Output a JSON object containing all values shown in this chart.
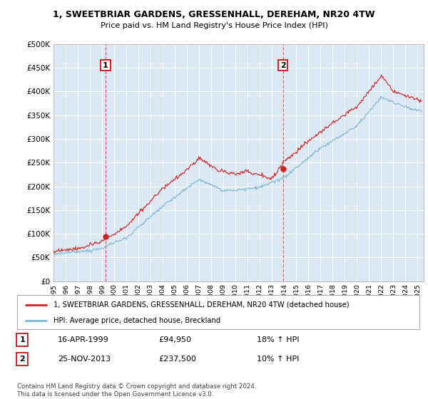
{
  "title1": "1, SWEETBRIAR GARDENS, GRESSENHALL, DEREHAM, NR20 4TW",
  "title2": "Price paid vs. HM Land Registry's House Price Index (HPI)",
  "plot_bg_color": "#dce9f5",
  "red_line_label": "1, SWEETBRIAR GARDENS, GRESSENHALL, DEREHAM, NR20 4TW (detached house)",
  "blue_line_label": "HPI: Average price, detached house, Breckland",
  "marker1_date": 1999.29,
  "marker1_value": 94950,
  "marker1_label": "1",
  "marker2_date": 2013.9,
  "marker2_value": 237500,
  "marker2_label": "2",
  "legend_row1_num": "1",
  "legend_row1_date": "16-APR-1999",
  "legend_row1_price": "£94,950",
  "legend_row1_hpi": "18% ↑ HPI",
  "legend_row2_num": "2",
  "legend_row2_date": "25-NOV-2013",
  "legend_row2_price": "£237,500",
  "legend_row2_hpi": "10% ↑ HPI",
  "footer": "Contains HM Land Registry data © Crown copyright and database right 2024.\nThis data is licensed under the Open Government Licence v3.0.",
  "ylim": [
    0,
    500000
  ],
  "xlim": [
    1995,
    2025.5
  ],
  "yticks": [
    0,
    50000,
    100000,
    150000,
    200000,
    250000,
    300000,
    350000,
    400000,
    450000,
    500000
  ],
  "ytick_labels": [
    "£0",
    "£50K",
    "£100K",
    "£150K",
    "£200K",
    "£250K",
    "£300K",
    "£350K",
    "£400K",
    "£450K",
    "£500K"
  ],
  "xticks": [
    1995,
    1996,
    1997,
    1998,
    1999,
    2000,
    2001,
    2002,
    2003,
    2004,
    2005,
    2006,
    2007,
    2008,
    2009,
    2010,
    2011,
    2012,
    2013,
    2014,
    2015,
    2016,
    2017,
    2018,
    2019,
    2020,
    2021,
    2022,
    2023,
    2024,
    2025
  ],
  "red_color": "#cc2222",
  "blue_color": "#7bb8d4",
  "grid_color": "#c8d8e8",
  "spine_color": "#bbbbbb"
}
